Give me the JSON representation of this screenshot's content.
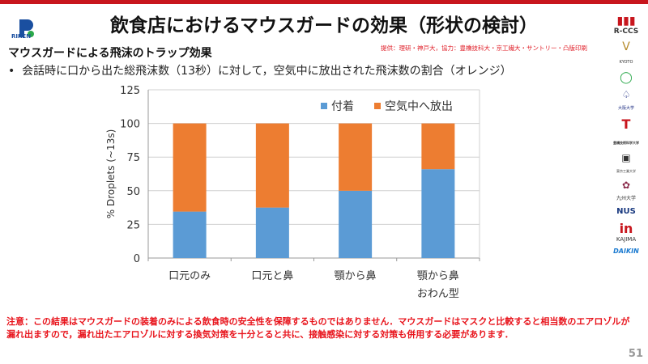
{
  "title": "飲食店におけるマウスガードの効果（形状の検討）",
  "subtitle": "マウスガードによる飛沫のトラップ効果",
  "credit": "提供：理研・神戸大，協力：豊橋技科大・京工繊大・サントリー・凸版印刷",
  "bullet": "会話時に口から出た総飛沫数（13秒）に対して，空気中に放出された飛沫数の割合（オレンジ）",
  "note": "注意：この結果はマウスガードの装着のみによる飲食時の安全性を保障するものではありません．マウスガードはマスクと比較すると相当数のエアロゾルが漏れ出ますので，漏れ出たエアロゾルに対する換気対策を十分とると共に、接触感染に対する対策も併用する必要があります．",
  "page_number": "51",
  "logos": [
    "RIKEN",
    "R-CCS",
    "KYOTO",
    "大阪大学",
    "豊橋技術科学大学",
    "東京工業大学",
    "九州大学",
    "NUS",
    "KAJIMA",
    "DAIKIN"
  ],
  "colors": {
    "blue": "#5b9bd5",
    "orange": "#ed7d31",
    "accent": "#c8161d"
  },
  "chart_data": {
    "type": "bar",
    "stacked": true,
    "categories": [
      "口元のみ",
      "口元と鼻",
      "顎から鼻",
      "顎から鼻\nおわん型"
    ],
    "category_lines": [
      [
        "口元のみ"
      ],
      [
        "口元と鼻"
      ],
      [
        "顎から鼻"
      ],
      [
        "顎から鼻",
        "おわん型"
      ]
    ],
    "series": [
      {
        "name": "付着",
        "values": [
          34.5,
          37.5,
          50,
          66
        ]
      },
      {
        "name": "空気中へ放出",
        "values": [
          65.5,
          62.5,
          50,
          34
        ]
      }
    ],
    "ylabel": "% Droplets (~13s)",
    "xlabel": "",
    "ylim": [
      0,
      125
    ],
    "yticks": [
      0,
      25,
      50,
      75,
      100,
      125
    ],
    "grid": true,
    "legend": "top-right"
  }
}
